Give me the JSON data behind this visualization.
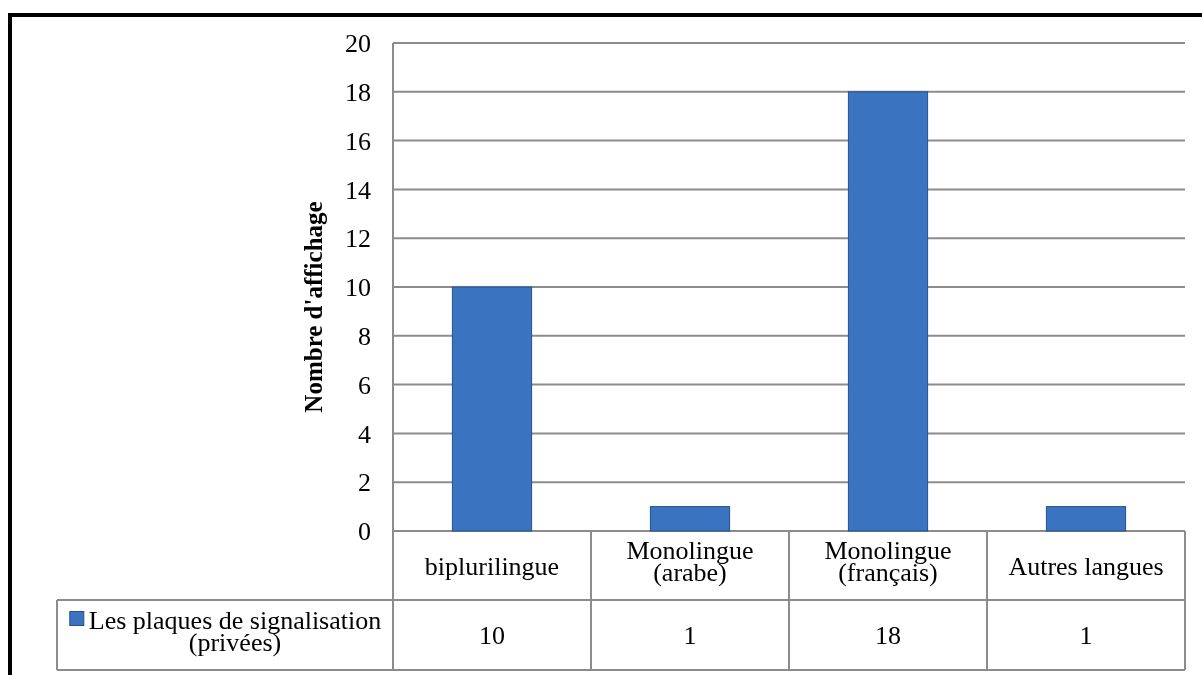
{
  "chart_data": {
    "type": "bar",
    "ylabel": "Nombre d'affichage",
    "categories": [
      "biplurilingue",
      "Monolingue (arabe)",
      "Monolingue (français)",
      "Autres langues"
    ],
    "series": [
      {
        "name": "Les plaques de signalisation (privées)",
        "color": "#3a74c0",
        "values": [
          10,
          1,
          18,
          1
        ]
      }
    ],
    "ylim": [
      0,
      20
    ],
    "yticks": [
      0,
      2,
      4,
      6,
      8,
      10,
      12,
      14,
      16,
      18,
      20
    ],
    "grid": true,
    "legend": "bottom",
    "data_labels": true
  }
}
